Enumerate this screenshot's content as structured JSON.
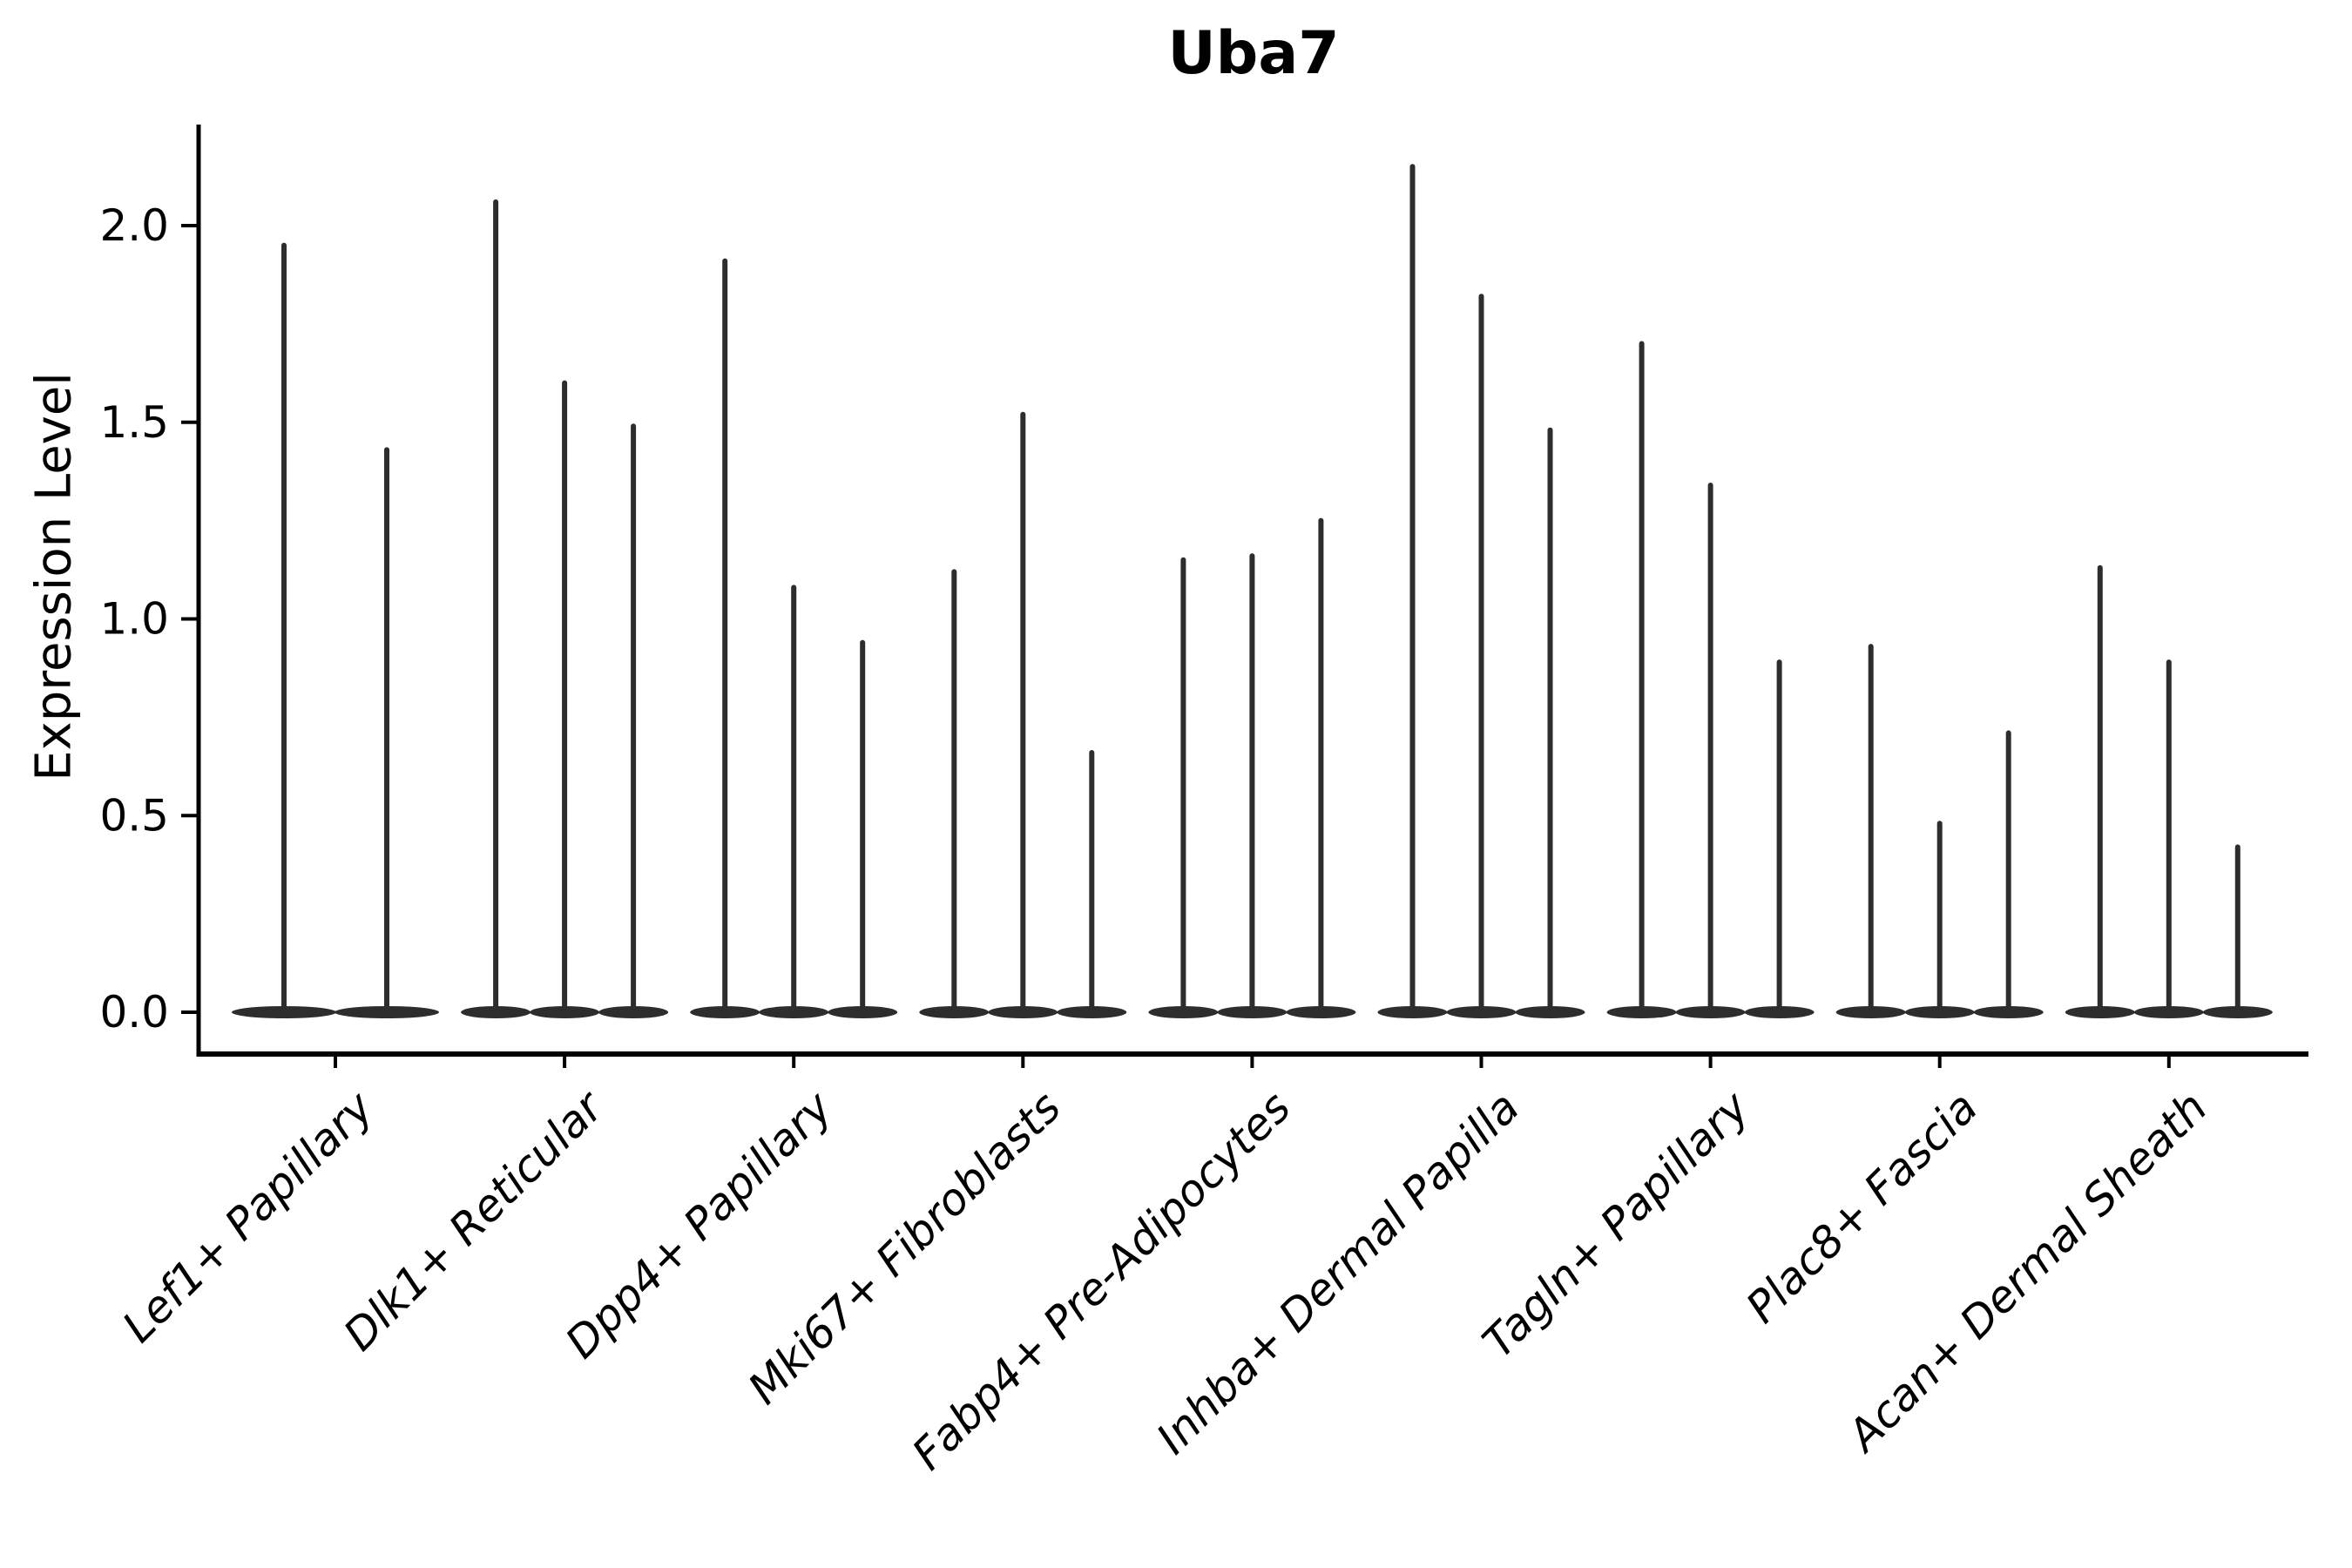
{
  "chart_data": {
    "type": "violin",
    "title": "Uba7",
    "ylabel": "Expression Level",
    "xlabel": "",
    "categories": [
      "Lef1+ Papillary",
      "Dlk1+ Reticular",
      "Dpp4+ Papillary",
      "Mki67+ Fibroblasts",
      "Fabp4+ Pre-Adipocytes",
      "Inhba+ Dermal Papilla",
      "Tagln+ Papillary",
      "Plac8+ Fascia",
      "Acan+ Dermal Sheath"
    ],
    "series": [
      {
        "category": "Lef1+ Papillary",
        "violin_max_values": [
          1.95,
          1.43
        ]
      },
      {
        "category": "Dlk1+ Reticular",
        "violin_max_values": [
          2.06,
          1.6,
          1.49
        ]
      },
      {
        "category": "Dpp4+ Papillary",
        "violin_max_values": [
          1.91,
          1.08,
          0.94
        ]
      },
      {
        "category": "Mki67+ Fibroblasts",
        "violin_max_values": [
          1.12,
          1.52,
          0.66
        ]
      },
      {
        "category": "Fabp4+ Pre-Adipocytes",
        "violin_max_values": [
          1.15,
          1.16,
          1.25
        ]
      },
      {
        "category": "Inhba+ Dermal Papilla",
        "violin_max_values": [
          2.15,
          1.82,
          1.48
        ]
      },
      {
        "category": "Tagln+ Papillary",
        "violin_max_values": [
          1.7,
          1.34,
          0.89
        ]
      },
      {
        "category": "Plac8+ Fascia",
        "violin_max_values": [
          0.93,
          0.48,
          0.71
        ]
      },
      {
        "category": "Acan+ Dermal Sheath",
        "violin_max_values": [
          1.13,
          0.89,
          0.42
        ]
      }
    ],
    "violin_baseline_value": 0.0,
    "ytick_labels": [
      "0.0",
      "0.5",
      "1.0",
      "1.5",
      "2.0"
    ],
    "yticks": [
      0.0,
      0.5,
      1.0,
      1.5,
      2.0
    ],
    "ylim": [
      -0.107,
      2.257
    ],
    "grid": false,
    "legend": "none",
    "colors": {
      "violin": "#2d2d2d",
      "axis": "#000000",
      "text": "#000000"
    }
  }
}
